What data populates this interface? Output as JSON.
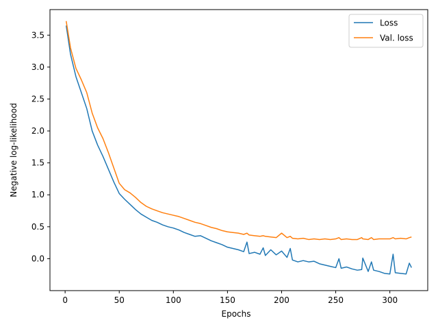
{
  "chart_data": {
    "type": "line",
    "title": "",
    "xlabel": "Epochs",
    "ylabel": "Negative log-likelihood",
    "xlim": [
      -14,
      335
    ],
    "ylim": [
      -0.5,
      3.9
    ],
    "xticks": [
      0,
      50,
      100,
      150,
      200,
      250,
      300
    ],
    "xtick_labels": [
      "0",
      "50",
      "100",
      "150",
      "200",
      "250",
      "300"
    ],
    "yticks": [
      0.0,
      0.5,
      1.0,
      1.5,
      2.0,
      2.5,
      3.0,
      3.5
    ],
    "ytick_labels": [
      "0.0",
      "0.5",
      "1.0",
      "1.5",
      "2.0",
      "2.5",
      "3.0",
      "3.5"
    ],
    "grid": false,
    "legend_position": "top-right",
    "x": [
      1,
      5,
      10,
      15,
      20,
      25,
      30,
      35,
      40,
      45,
      50,
      55,
      60,
      65,
      70,
      75,
      80,
      85,
      90,
      95,
      100,
      105,
      110,
      115,
      120,
      125,
      130,
      135,
      140,
      145,
      150,
      155,
      160,
      165,
      168,
      170,
      175,
      180,
      183,
      185,
      190,
      195,
      200,
      205,
      208,
      210,
      215,
      220,
      225,
      230,
      235,
      240,
      245,
      250,
      253,
      255,
      260,
      265,
      270,
      274,
      275,
      280,
      283,
      285,
      290,
      295,
      300,
      303,
      305,
      310,
      315,
      318,
      320
    ],
    "series": [
      {
        "name": "Loss",
        "color": "#1f77b4",
        "values": [
          3.65,
          3.2,
          2.85,
          2.6,
          2.35,
          2.0,
          1.78,
          1.6,
          1.4,
          1.2,
          1.02,
          0.93,
          0.85,
          0.77,
          0.7,
          0.65,
          0.6,
          0.57,
          0.53,
          0.5,
          0.48,
          0.45,
          0.41,
          0.38,
          0.35,
          0.36,
          0.32,
          0.28,
          0.25,
          0.22,
          0.18,
          0.16,
          0.14,
          0.11,
          0.26,
          0.08,
          0.1,
          0.07,
          0.17,
          0.05,
          0.14,
          0.06,
          0.12,
          0.02,
          0.16,
          -0.02,
          -0.05,
          -0.03,
          -0.05,
          -0.04,
          -0.08,
          -0.1,
          -0.12,
          -0.14,
          0.0,
          -0.15,
          -0.13,
          -0.16,
          -0.18,
          -0.17,
          0.01,
          -0.2,
          -0.05,
          -0.18,
          -0.2,
          -0.23,
          -0.24,
          0.07,
          -0.22,
          -0.23,
          -0.24,
          -0.07,
          -0.14
        ]
      },
      {
        "name": "Val. loss",
        "color": "#ff7f0e",
        "values": [
          3.72,
          3.3,
          2.98,
          2.8,
          2.6,
          2.28,
          2.05,
          1.88,
          1.66,
          1.42,
          1.18,
          1.08,
          1.03,
          0.96,
          0.88,
          0.82,
          0.78,
          0.75,
          0.72,
          0.7,
          0.68,
          0.66,
          0.63,
          0.6,
          0.57,
          0.55,
          0.52,
          0.49,
          0.47,
          0.44,
          0.42,
          0.41,
          0.4,
          0.38,
          0.4,
          0.37,
          0.36,
          0.35,
          0.36,
          0.35,
          0.34,
          0.33,
          0.4,
          0.33,
          0.35,
          0.32,
          0.31,
          0.32,
          0.3,
          0.31,
          0.3,
          0.31,
          0.3,
          0.31,
          0.33,
          0.3,
          0.31,
          0.3,
          0.3,
          0.33,
          0.31,
          0.3,
          0.33,
          0.3,
          0.31,
          0.31,
          0.31,
          0.33,
          0.31,
          0.32,
          0.31,
          0.33,
          0.34
        ]
      }
    ]
  }
}
